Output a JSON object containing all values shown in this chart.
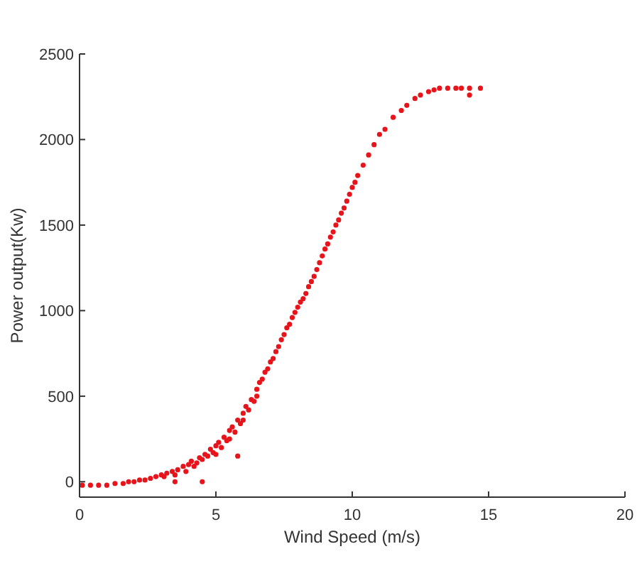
{
  "chart_data": {
    "type": "scatter",
    "xlabel": "Wind Speed (m/s)",
    "ylabel": "Power output(Kw)",
    "xlim": [
      0,
      20
    ],
    "xticks": [
      0,
      5,
      10,
      15,
      20
    ],
    "ylim": [
      -90,
      2500
    ],
    "yticks": [
      0,
      500,
      1000,
      1500,
      2000,
      2500
    ],
    "grid": false,
    "marker": "circle",
    "x": [
      0.1,
      0.4,
      0.7,
      1.0,
      1.3,
      1.6,
      1.8,
      2.0,
      2.2,
      2.4,
      2.6,
      2.8,
      3.0,
      3.1,
      3.2,
      3.4,
      3.5,
      3.6,
      3.8,
      3.9,
      4.0,
      4.1,
      4.2,
      4.3,
      4.4,
      4.5,
      4.6,
      4.7,
      4.8,
      4.9,
      5.0,
      5.0,
      5.1,
      5.2,
      5.3,
      5.4,
      5.5,
      5.5,
      5.6,
      5.7,
      5.8,
      5.9,
      6.0,
      6.0,
      6.1,
      6.2,
      6.3,
      6.4,
      6.5,
      6.5,
      6.6,
      6.7,
      6.8,
      6.9,
      7.0,
      7.1,
      7.2,
      7.3,
      7.4,
      7.5,
      7.6,
      7.7,
      7.8,
      7.9,
      8.0,
      8.1,
      8.2,
      8.3,
      8.4,
      8.5,
      8.6,
      8.7,
      8.8,
      8.9,
      9.0,
      9.1,
      9.2,
      9.3,
      9.4,
      9.5,
      9.6,
      9.7,
      9.8,
      9.9,
      10.0,
      10.1,
      10.2,
      10.4,
      10.6,
      10.8,
      11.0,
      11.2,
      11.5,
      11.8,
      12.0,
      12.3,
      12.5,
      12.8,
      13.0,
      13.2,
      13.5,
      13.8,
      14.0,
      14.3,
      14.7,
      14.3,
      4.5,
      3.5,
      5.8
    ],
    "series": [
      {
        "color": "#e8141b",
        "values": [
          -20,
          -20,
          -20,
          -20,
          -10,
          -10,
          0,
          0,
          10,
          10,
          20,
          30,
          40,
          30,
          50,
          60,
          40,
          70,
          90,
          60,
          100,
          120,
          90,
          110,
          140,
          130,
          160,
          150,
          190,
          170,
          210,
          160,
          230,
          200,
          260,
          240,
          300,
          250,
          320,
          290,
          360,
          340,
          400,
          360,
          440,
          420,
          480,
          470,
          540,
          500,
          580,
          600,
          640,
          660,
          700,
          720,
          760,
          790,
          830,
          860,
          900,
          920,
          960,
          990,
          1020,
          1050,
          1070,
          1100,
          1140,
          1170,
          1200,
          1240,
          1280,
          1320,
          1360,
          1390,
          1430,
          1460,
          1500,
          1530,
          1570,
          1600,
          1640,
          1680,
          1720,
          1750,
          1790,
          1850,
          1910,
          1970,
          2030,
          2060,
          2130,
          2170,
          2200,
          2240,
          2260,
          2280,
          2290,
          2300,
          2300,
          2300,
          2300,
          2300,
          2300,
          2260,
          0,
          0,
          150
        ]
      }
    ]
  }
}
